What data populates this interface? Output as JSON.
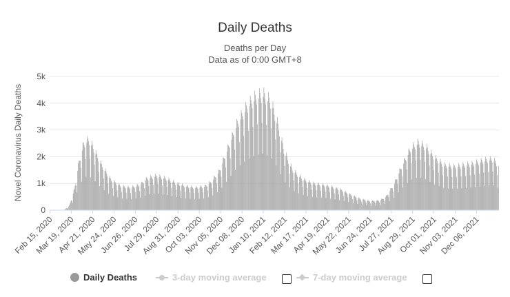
{
  "chart_data": {
    "type": "bar",
    "title": "Daily Deaths",
    "subtitle_line1": "Deaths per Day",
    "subtitle_line2": "Data as of 0:00 GMT+8",
    "ylabel": "Novel Coronavirus Daily Deaths",
    "ylim": [
      0,
      5000
    ],
    "yticks": [
      {
        "value": 0,
        "label": "0"
      },
      {
        "value": 1000,
        "label": "1k"
      },
      {
        "value": 2000,
        "label": "2k"
      },
      {
        "value": 3000,
        "label": "3k"
      },
      {
        "value": 4000,
        "label": "4k"
      },
      {
        "value": 5000,
        "label": "5k"
      }
    ],
    "x_start": "2020-02-15",
    "num_days": 695,
    "xticks": [
      {
        "day": 0,
        "label": "Feb 15, 2020"
      },
      {
        "day": 33,
        "label": "Mar 19, 2020"
      },
      {
        "day": 66,
        "label": "Apr 21, 2020"
      },
      {
        "day": 99,
        "label": "May 24, 2020"
      },
      {
        "day": 132,
        "label": "Jun 26, 2020"
      },
      {
        "day": 165,
        "label": "Jul 29, 2020"
      },
      {
        "day": 198,
        "label": "Aug 31, 2020"
      },
      {
        "day": 231,
        "label": "Oct 03, 2020"
      },
      {
        "day": 264,
        "label": "Nov 05, 2020"
      },
      {
        "day": 297,
        "label": "Dec 08, 2020"
      },
      {
        "day": 330,
        "label": "Jan 10, 2021"
      },
      {
        "day": 363,
        "label": "Feb 12, 2021"
      },
      {
        "day": 396,
        "label": "Mar 17, 2021"
      },
      {
        "day": 429,
        "label": "Apr 19, 2021"
      },
      {
        "day": 462,
        "label": "May 22, 2021"
      },
      {
        "day": 495,
        "label": "Jun 24, 2021"
      },
      {
        "day": 528,
        "label": "Jul 27, 2021"
      },
      {
        "day": 561,
        "label": "Aug 29, 2021"
      },
      {
        "day": 594,
        "label": "Oct 01, 2021"
      },
      {
        "day": 627,
        "label": "Nov 03, 2021"
      },
      {
        "day": 660,
        "label": "Dec 06, 2021"
      }
    ],
    "trend_anchors": [
      [
        0,
        0
      ],
      [
        22,
        0
      ],
      [
        30,
        150
      ],
      [
        38,
        700
      ],
      [
        45,
        1600
      ],
      [
        52,
        2200
      ],
      [
        60,
        2350
      ],
      [
        68,
        2050
      ],
      [
        80,
        1500
      ],
      [
        95,
        1000
      ],
      [
        110,
        800
      ],
      [
        125,
        750
      ],
      [
        140,
        850
      ],
      [
        150,
        1050
      ],
      [
        165,
        1150
      ],
      [
        180,
        1050
      ],
      [
        195,
        900
      ],
      [
        210,
        800
      ],
      [
        225,
        750
      ],
      [
        240,
        800
      ],
      [
        250,
        950
      ],
      [
        262,
        1300
      ],
      [
        275,
        2050
      ],
      [
        290,
        2900
      ],
      [
        305,
        3450
      ],
      [
        318,
        3750
      ],
      [
        330,
        3850
      ],
      [
        342,
        3600
      ],
      [
        352,
        2900
      ],
      [
        362,
        2000
      ],
      [
        375,
        1350
      ],
      [
        390,
        1050
      ],
      [
        405,
        900
      ],
      [
        420,
        850
      ],
      [
        435,
        780
      ],
      [
        450,
        680
      ],
      [
        465,
        520
      ],
      [
        480,
        380
      ],
      [
        495,
        300
      ],
      [
        510,
        320
      ],
      [
        520,
        450
      ],
      [
        532,
        850
      ],
      [
        545,
        1500
      ],
      [
        558,
        2050
      ],
      [
        570,
        2250
      ],
      [
        582,
        2100
      ],
      [
        595,
        1750
      ],
      [
        610,
        1500
      ],
      [
        625,
        1450
      ],
      [
        640,
        1500
      ],
      [
        655,
        1550
      ],
      [
        670,
        1650
      ],
      [
        685,
        1700
      ],
      [
        694,
        1500
      ]
    ],
    "weekly_pattern": [
      0.55,
      1.1,
      1.2,
      1.15,
      1.1,
      1.05,
      0.85
    ],
    "series": [
      {
        "name": "Daily Deaths",
        "color": "#a0a0a0"
      }
    ]
  },
  "legend": {
    "items": [
      {
        "label": "Daily Deaths",
        "color": "#999999"
      },
      {
        "label": "3-day moving average",
        "color": "#cccccc"
      },
      {
        "label": "7-day moving average",
        "color": "#cccccc"
      }
    ]
  }
}
